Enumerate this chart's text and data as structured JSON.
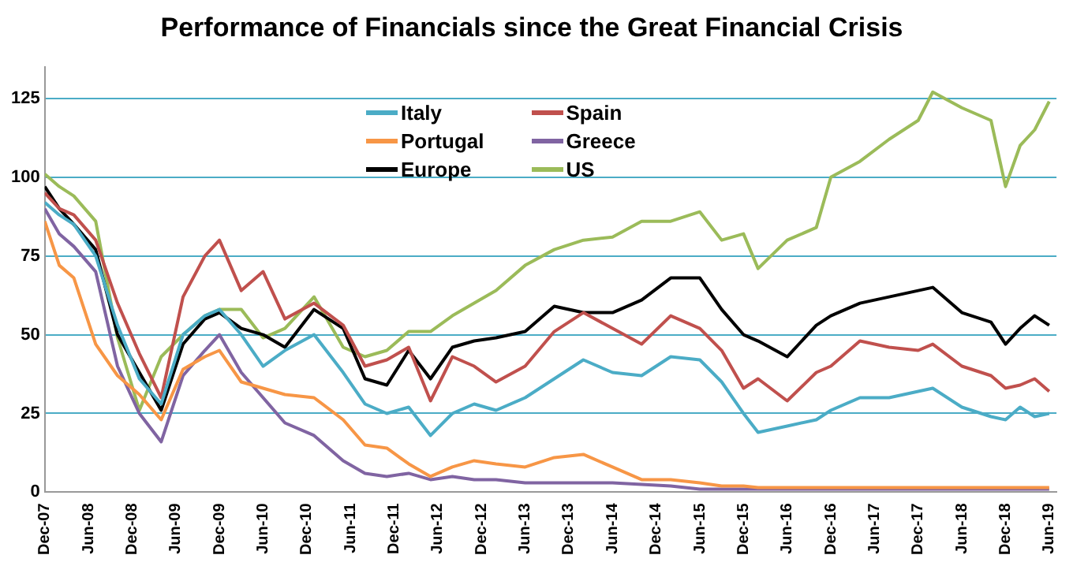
{
  "chart_data": {
    "type": "line",
    "title": "Performance of Financials since the Great Financial Crisis",
    "x": [
      "2007-12",
      "2008-02",
      "2008-04",
      "2008-07",
      "2008-10",
      "2009-01",
      "2009-04",
      "2009-07",
      "2009-10",
      "2009-12",
      "2010-03",
      "2010-06",
      "2010-09",
      "2011-01",
      "2011-05",
      "2011-08",
      "2011-11",
      "2012-02",
      "2012-05",
      "2012-08",
      "2012-11",
      "2013-02",
      "2013-06",
      "2013-10",
      "2014-02",
      "2014-06",
      "2014-10",
      "2015-02",
      "2015-06",
      "2015-09",
      "2015-12",
      "2016-02",
      "2016-06",
      "2016-10",
      "2016-12",
      "2017-04",
      "2017-08",
      "2017-12",
      "2018-02",
      "2018-06",
      "2018-10",
      "2018-12",
      "2019-02",
      "2019-04",
      "2019-06"
    ],
    "series": [
      {
        "name": "Italy",
        "color": "#4bacc6",
        "values": [
          92,
          88,
          85,
          75,
          53,
          36,
          28,
          50,
          56,
          58,
          50,
          40,
          45,
          50,
          38,
          28,
          25,
          27,
          18,
          25,
          28,
          26,
          30,
          36,
          42,
          38,
          37,
          43,
          42,
          35,
          25,
          19,
          21,
          23,
          26,
          30,
          30,
          32,
          33,
          27,
          24,
          23,
          27,
          24,
          25
        ]
      },
      {
        "name": "Spain",
        "color": "#c0504d",
        "values": [
          95,
          90,
          88,
          80,
          60,
          44,
          30,
          62,
          75,
          80,
          64,
          70,
          55,
          60,
          53,
          40,
          42,
          46,
          29,
          43,
          40,
          35,
          40,
          51,
          57,
          52,
          47,
          56,
          52,
          45,
          33,
          36,
          29,
          38,
          40,
          48,
          46,
          45,
          47,
          40,
          37,
          33,
          34,
          36,
          32
        ]
      },
      {
        "name": "Portugal",
        "color": "#f79646",
        "values": [
          86,
          72,
          68,
          47,
          37,
          31,
          23,
          39,
          43,
          45,
          35,
          33,
          31,
          30,
          23,
          15,
          14,
          9,
          5,
          8,
          10,
          9,
          8,
          11,
          12,
          8,
          4,
          4,
          3,
          2,
          2,
          1.5,
          1.5,
          1.5,
          1.5,
          1.5,
          1.5,
          1.5,
          1.5,
          1.5,
          1.5,
          1.5,
          1.5,
          1.5,
          1.5
        ]
      },
      {
        "name": "Greece",
        "color": "#8064a2",
        "values": [
          90,
          82,
          78,
          70,
          40,
          25,
          16,
          37,
          45,
          50,
          38,
          30,
          22,
          18,
          10,
          6,
          5,
          6,
          4,
          5,
          4,
          4,
          3,
          3,
          3,
          3,
          2.5,
          2,
          1,
          1,
          1,
          1,
          1,
          1,
          1,
          1,
          1,
          1,
          1,
          1,
          1,
          1,
          1,
          1,
          1
        ]
      },
      {
        "name": "Europe",
        "color": "#000000",
        "values": [
          97,
          90,
          85,
          77,
          50,
          38,
          26,
          47,
          55,
          57,
          52,
          50,
          46,
          58,
          52,
          36,
          34,
          45,
          36,
          46,
          48,
          49,
          51,
          59,
          57,
          57,
          61,
          68,
          68,
          58,
          50,
          48,
          43,
          53,
          56,
          60,
          62,
          64,
          65,
          57,
          54,
          47,
          52,
          56,
          53
        ]
      },
      {
        "name": "US",
        "color": "#9bbb59",
        "values": [
          101,
          97,
          94,
          86,
          49,
          26,
          43,
          50,
          56,
          58,
          58,
          49,
          52,
          62,
          46,
          43,
          45,
          51,
          51,
          56,
          60,
          64,
          72,
          77,
          80,
          81,
          86,
          86,
          89,
          80,
          82,
          71,
          80,
          84,
          100,
          105,
          112,
          118,
          127,
          122,
          118,
          97,
          110,
          115,
          124
        ]
      }
    ],
    "xlim": [
      "2007-12",
      "2019-07"
    ],
    "xticks": [
      {
        "value": "2007-12",
        "label": "Dec-07"
      },
      {
        "value": "2008-06",
        "label": "Jun-08"
      },
      {
        "value": "2008-12",
        "label": "Dec-08"
      },
      {
        "value": "2009-06",
        "label": "Jun-09"
      },
      {
        "value": "2009-12",
        "label": "Dec-09"
      },
      {
        "value": "2010-06",
        "label": "Jun-10"
      },
      {
        "value": "2010-12",
        "label": "Dec-10"
      },
      {
        "value": "2011-06",
        "label": "Jun-11"
      },
      {
        "value": "2011-12",
        "label": "Dec-11"
      },
      {
        "value": "2012-06",
        "label": "Jun-12"
      },
      {
        "value": "2012-12",
        "label": "Dec-12"
      },
      {
        "value": "2013-06",
        "label": "Jun-13"
      },
      {
        "value": "2013-12",
        "label": "Dec-13"
      },
      {
        "value": "2014-06",
        "label": "Jun-14"
      },
      {
        "value": "2014-12",
        "label": "Dec-14"
      },
      {
        "value": "2015-06",
        "label": "Jun-15"
      },
      {
        "value": "2015-12",
        "label": "Dec-15"
      },
      {
        "value": "2016-06",
        "label": "Jun-16"
      },
      {
        "value": "2016-12",
        "label": "Dec-16"
      },
      {
        "value": "2017-06",
        "label": "Jun-17"
      },
      {
        "value": "2017-12",
        "label": "Dec-17"
      },
      {
        "value": "2018-06",
        "label": "Jun-18"
      },
      {
        "value": "2018-12",
        "label": "Dec-18"
      },
      {
        "value": "2019-06",
        "label": "Jun-19"
      }
    ],
    "ylim": [
      0,
      135
    ],
    "yticks": [
      0,
      25,
      50,
      75,
      100,
      125
    ],
    "grid": "y",
    "legend": "top",
    "marker": "none",
    "line_style": "solid"
  }
}
